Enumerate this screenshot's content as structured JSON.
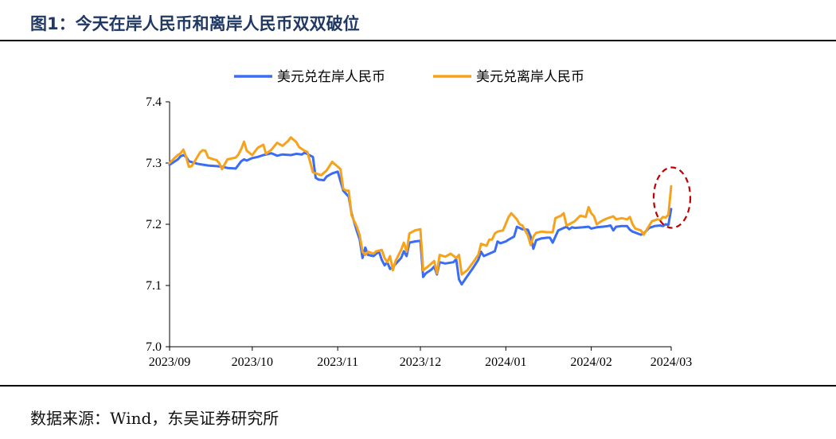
{
  "figure": {
    "title": "图1：今天在岸人民币和离岸人民币双双破位",
    "source": "数据来源：Wind，东吴证券研究所"
  },
  "colors": {
    "onshore": "#3b6cf4",
    "offshore": "#f7a21b",
    "annotation": "#c00000"
  },
  "chart_data": {
    "type": "line",
    "title": "",
    "xlabel": "",
    "ylabel": "",
    "ylim": [
      7.0,
      7.4
    ],
    "yticks": [
      "7.0",
      "7.1",
      "7.2",
      "7.3",
      "7.4"
    ],
    "xlim": [
      "2023-09-01",
      "2024-03-01"
    ],
    "xticks": [
      {
        "label": "2023/09",
        "date": "2023-09-01"
      },
      {
        "label": "2023/10",
        "date": "2023-10-01"
      },
      {
        "label": "2023/11",
        "date": "2023-11-01"
      },
      {
        "label": "2023/12",
        "date": "2023-12-01"
      },
      {
        "label": "2024/01",
        "date": "2024-01-01"
      },
      {
        "label": "2024/02",
        "date": "2024-02-01"
      },
      {
        "label": "2024/03",
        "date": "2024-03-01"
      }
    ],
    "legend_position": "top",
    "grid": false,
    "annotation": "dashed ellipse around latest values (2024/03)",
    "series": [
      {
        "name": "美元兑在岸人民币",
        "points": [
          [
            "2023-09-01",
            7.297
          ],
          [
            "2023-09-04",
            7.306
          ],
          [
            "2023-09-05",
            7.311
          ],
          [
            "2023-09-06",
            7.313
          ],
          [
            "2023-09-07",
            7.31
          ],
          [
            "2023-09-08",
            7.303
          ],
          [
            "2023-09-11",
            7.299
          ],
          [
            "2023-09-12",
            7.298
          ],
          [
            "2023-09-15",
            7.296
          ],
          [
            "2023-09-18",
            7.295
          ],
          [
            "2023-09-20",
            7.294
          ],
          [
            "2023-09-22",
            7.292
          ],
          [
            "2023-09-25",
            7.291
          ],
          [
            "2023-09-26",
            7.297
          ],
          [
            "2023-09-27",
            7.303
          ],
          [
            "2023-09-28",
            7.306
          ],
          [
            "2023-09-29",
            7.304
          ],
          [
            "2023-10-01",
            7.308
          ],
          [
            "2023-10-03",
            7.31
          ],
          [
            "2023-10-05",
            7.313
          ],
          [
            "2023-10-08",
            7.316
          ],
          [
            "2023-10-10",
            7.312
          ],
          [
            "2023-10-12",
            7.314
          ],
          [
            "2023-10-15",
            7.313
          ],
          [
            "2023-10-17",
            7.315
          ],
          [
            "2023-10-19",
            7.314
          ],
          [
            "2023-10-20",
            7.317
          ],
          [
            "2023-10-23",
            7.31
          ],
          [
            "2023-10-24",
            7.276
          ],
          [
            "2023-10-25",
            7.273
          ],
          [
            "2023-10-27",
            7.272
          ],
          [
            "2023-10-28",
            7.278
          ],
          [
            "2023-10-30",
            7.283
          ],
          [
            "2023-11-01",
            7.286
          ],
          [
            "2023-11-03",
            7.255
          ],
          [
            "2023-11-05",
            7.245
          ],
          [
            "2023-11-06",
            7.218
          ],
          [
            "2023-11-08",
            7.188
          ],
          [
            "2023-11-09",
            7.175
          ],
          [
            "2023-11-10",
            7.145
          ],
          [
            "2023-11-11",
            7.162
          ],
          [
            "2023-11-12",
            7.15
          ],
          [
            "2023-11-14",
            7.148
          ],
          [
            "2023-11-15",
            7.152
          ],
          [
            "2023-11-16",
            7.155
          ],
          [
            "2023-11-17",
            7.142
          ],
          [
            "2023-11-18",
            7.133
          ],
          [
            "2023-11-19",
            7.138
          ],
          [
            "2023-11-20",
            7.127
          ],
          [
            "2023-11-22",
            7.135
          ],
          [
            "2023-11-24",
            7.145
          ],
          [
            "2023-11-25",
            7.156
          ],
          [
            "2023-11-26",
            7.148
          ],
          [
            "2023-11-27",
            7.17
          ],
          [
            "2023-11-29",
            7.172
          ],
          [
            "2023-12-01",
            7.173
          ],
          [
            "2023-12-02",
            7.114
          ],
          [
            "2023-12-03",
            7.12
          ],
          [
            "2023-12-05",
            7.126
          ],
          [
            "2023-12-06",
            7.131
          ],
          [
            "2023-12-07",
            7.118
          ],
          [
            "2023-12-08",
            7.138
          ],
          [
            "2023-12-10",
            7.136
          ],
          [
            "2023-12-13",
            7.138
          ],
          [
            "2023-12-14",
            7.143
          ],
          [
            "2023-12-15",
            7.11
          ],
          [
            "2023-12-16",
            7.102
          ],
          [
            "2023-12-18",
            7.115
          ],
          [
            "2023-12-20",
            7.128
          ],
          [
            "2023-12-22",
            7.142
          ],
          [
            "2023-12-23",
            7.155
          ],
          [
            "2023-12-24",
            7.148
          ],
          [
            "2023-12-25",
            7.15
          ],
          [
            "2023-12-28",
            7.156
          ],
          [
            "2023-12-29",
            7.172
          ],
          [
            "2023-12-30",
            7.169
          ],
          [
            "2024-01-01",
            7.172
          ],
          [
            "2024-01-02",
            7.175
          ],
          [
            "2024-01-04",
            7.18
          ],
          [
            "2024-01-05",
            7.196
          ],
          [
            "2024-01-07",
            7.192
          ],
          [
            "2024-01-09",
            7.191
          ],
          [
            "2024-01-10",
            7.18
          ],
          [
            "2024-01-11",
            7.16
          ],
          [
            "2024-01-12",
            7.174
          ],
          [
            "2024-01-14",
            7.177
          ],
          [
            "2024-01-16",
            7.178
          ],
          [
            "2024-01-17",
            7.178
          ],
          [
            "2024-01-18",
            7.17
          ],
          [
            "2024-01-19",
            7.18
          ],
          [
            "2024-01-20",
            7.19
          ],
          [
            "2024-01-22",
            7.194
          ],
          [
            "2024-01-23",
            7.196
          ],
          [
            "2024-01-24",
            7.192
          ],
          [
            "2024-01-25",
            7.195
          ],
          [
            "2024-01-26",
            7.194
          ],
          [
            "2024-01-29",
            7.195
          ],
          [
            "2024-01-31",
            7.196
          ],
          [
            "2024-02-01",
            7.193
          ],
          [
            "2024-02-03",
            7.195
          ],
          [
            "2024-02-05",
            7.196
          ],
          [
            "2024-02-07",
            7.197
          ],
          [
            "2024-02-08",
            7.198
          ],
          [
            "2024-02-09",
            7.19
          ],
          [
            "2024-02-10",
            7.196
          ],
          [
            "2024-02-12",
            7.197
          ],
          [
            "2024-02-14",
            7.197
          ],
          [
            "2024-02-15",
            7.191
          ],
          [
            "2024-02-16",
            7.188
          ],
          [
            "2024-02-19",
            7.183
          ],
          [
            "2024-02-20",
            7.185
          ],
          [
            "2024-02-22",
            7.194
          ],
          [
            "2024-02-24",
            7.197
          ],
          [
            "2024-02-26",
            7.198
          ],
          [
            "2024-02-27",
            7.197
          ],
          [
            "2024-02-28",
            7.2
          ],
          [
            "2024-02-29",
            7.199
          ],
          [
            "2024-03-01",
            7.225
          ]
        ]
      },
      {
        "name": "美元兑离岸人民币",
        "points": [
          [
            "2023-09-01",
            7.3
          ],
          [
            "2023-09-03",
            7.309
          ],
          [
            "2023-09-04",
            7.313
          ],
          [
            "2023-09-05",
            7.316
          ],
          [
            "2023-09-06",
            7.322
          ],
          [
            "2023-09-07",
            7.31
          ],
          [
            "2023-09-08",
            7.294
          ],
          [
            "2023-09-09",
            7.295
          ],
          [
            "2023-09-10",
            7.302
          ],
          [
            "2023-09-12",
            7.317
          ],
          [
            "2023-09-13",
            7.321
          ],
          [
            "2023-09-14",
            7.32
          ],
          [
            "2023-09-15",
            7.309
          ],
          [
            "2023-09-17",
            7.306
          ],
          [
            "2023-09-18",
            7.305
          ],
          [
            "2023-09-19",
            7.3
          ],
          [
            "2023-09-20",
            7.29
          ],
          [
            "2023-09-21",
            7.298
          ],
          [
            "2023-09-22",
            7.306
          ],
          [
            "2023-09-25",
            7.309
          ],
          [
            "2023-09-26",
            7.314
          ],
          [
            "2023-09-27",
            7.323
          ],
          [
            "2023-09-28",
            7.335
          ],
          [
            "2023-09-29",
            7.32
          ],
          [
            "2023-10-01",
            7.313
          ],
          [
            "2023-10-03",
            7.325
          ],
          [
            "2023-10-05",
            7.33
          ],
          [
            "2023-10-06",
            7.315
          ],
          [
            "2023-10-08",
            7.322
          ],
          [
            "2023-10-10",
            7.333
          ],
          [
            "2023-10-12",
            7.328
          ],
          [
            "2023-10-14",
            7.336
          ],
          [
            "2023-10-15",
            7.342
          ],
          [
            "2023-10-17",
            7.334
          ],
          [
            "2023-10-18",
            7.326
          ],
          [
            "2023-10-20",
            7.32
          ],
          [
            "2023-10-21",
            7.318
          ],
          [
            "2023-10-23",
            7.285
          ],
          [
            "2023-10-26",
            7.28
          ],
          [
            "2023-10-28",
            7.288
          ],
          [
            "2023-10-30",
            7.302
          ],
          [
            "2023-11-01",
            7.294
          ],
          [
            "2023-11-02",
            7.29
          ],
          [
            "2023-11-03",
            7.258
          ],
          [
            "2023-11-04",
            7.255
          ],
          [
            "2023-11-05",
            7.255
          ],
          [
            "2023-11-06",
            7.215
          ],
          [
            "2023-11-08",
            7.195
          ],
          [
            "2023-11-09",
            7.182
          ],
          [
            "2023-11-10",
            7.155
          ],
          [
            "2023-11-11",
            7.15
          ],
          [
            "2023-11-12",
            7.155
          ],
          [
            "2023-11-14",
            7.152
          ],
          [
            "2023-11-15",
            7.156
          ],
          [
            "2023-11-17",
            7.158
          ],
          [
            "2023-11-18",
            7.145
          ],
          [
            "2023-11-19",
            7.138
          ],
          [
            "2023-11-20",
            7.148
          ],
          [
            "2023-11-21",
            7.125
          ],
          [
            "2023-11-22",
            7.14
          ],
          [
            "2023-11-24",
            7.158
          ],
          [
            "2023-11-25",
            7.17
          ],
          [
            "2023-11-26",
            7.155
          ],
          [
            "2023-11-27",
            7.185
          ],
          [
            "2023-11-29",
            7.19
          ],
          [
            "2023-12-01",
            7.192
          ],
          [
            "2023-12-02",
            7.125
          ],
          [
            "2023-12-04",
            7.132
          ],
          [
            "2023-12-06",
            7.14
          ],
          [
            "2023-12-07",
            7.12
          ],
          [
            "2023-12-08",
            7.15
          ],
          [
            "2023-12-10",
            7.147
          ],
          [
            "2023-12-12",
            7.152
          ],
          [
            "2023-12-14",
            7.145
          ],
          [
            "2023-12-15",
            7.15
          ],
          [
            "2023-12-16",
            7.118
          ],
          [
            "2023-12-18",
            7.125
          ],
          [
            "2023-12-20",
            7.137
          ],
          [
            "2023-12-22",
            7.15
          ],
          [
            "2023-12-23",
            7.168
          ],
          [
            "2023-12-25",
            7.165
          ],
          [
            "2023-12-26",
            7.175
          ],
          [
            "2023-12-27",
            7.175
          ],
          [
            "2023-12-28",
            7.185
          ],
          [
            "2023-12-29",
            7.188
          ],
          [
            "2023-12-31",
            7.19
          ],
          [
            "2024-01-02",
            7.212
          ],
          [
            "2024-01-03",
            7.218
          ],
          [
            "2024-01-05",
            7.208
          ],
          [
            "2024-01-06",
            7.2
          ],
          [
            "2024-01-07",
            7.198
          ],
          [
            "2024-01-09",
            7.182
          ],
          [
            "2024-01-10",
            7.166
          ],
          [
            "2024-01-11",
            7.18
          ],
          [
            "2024-01-12",
            7.186
          ],
          [
            "2024-01-14",
            7.188
          ],
          [
            "2024-01-16",
            7.187
          ],
          [
            "2024-01-18",
            7.187
          ],
          [
            "2024-01-19",
            7.21
          ],
          [
            "2024-01-21",
            7.214
          ],
          [
            "2024-01-22",
            7.218
          ],
          [
            "2024-01-23",
            7.198
          ],
          [
            "2024-01-24",
            7.2
          ],
          [
            "2024-01-26",
            7.205
          ],
          [
            "2024-01-28",
            7.214
          ],
          [
            "2024-01-30",
            7.212
          ],
          [
            "2024-01-31",
            7.228
          ],
          [
            "2024-02-01",
            7.218
          ],
          [
            "2024-02-02",
            7.213
          ],
          [
            "2024-02-03",
            7.2
          ],
          [
            "2024-02-05",
            7.206
          ],
          [
            "2024-02-07",
            7.21
          ],
          [
            "2024-02-09",
            7.213
          ],
          [
            "2024-02-10",
            7.208
          ],
          [
            "2024-02-12",
            7.21
          ],
          [
            "2024-02-14",
            7.208
          ],
          [
            "2024-02-15",
            7.212
          ],
          [
            "2024-02-16",
            7.2
          ],
          [
            "2024-02-17",
            7.193
          ],
          [
            "2024-02-19",
            7.19
          ],
          [
            "2024-02-20",
            7.183
          ],
          [
            "2024-02-21",
            7.19
          ],
          [
            "2024-02-23",
            7.205
          ],
          [
            "2024-02-25",
            7.208
          ],
          [
            "2024-02-26",
            7.207
          ],
          [
            "2024-02-27",
            7.212
          ],
          [
            "2024-02-28",
            7.211
          ],
          [
            "2024-02-29",
            7.216
          ],
          [
            "2024-03-01",
            7.262
          ]
        ]
      }
    ]
  }
}
